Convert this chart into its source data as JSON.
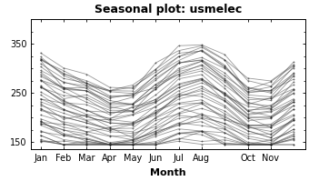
{
  "title": "Seasonal plot: usmelec",
  "xlabel": "Month",
  "months": [
    "Jan",
    "Feb",
    "Mar",
    "Apr",
    "May",
    "Jun",
    "Jul",
    "Aug",
    "Oct",
    "Nov"
  ],
  "month_positions": [
    1,
    2,
    3,
    4,
    5,
    6,
    7,
    8,
    10,
    11
  ],
  "all_months": [
    1,
    2,
    3,
    4,
    5,
    6,
    7,
    8,
    9,
    10,
    11,
    12
  ],
  "yticks": [
    150,
    250,
    350
  ],
  "ylim": [
    135,
    400
  ],
  "xlim": [
    0.6,
    12.5
  ],
  "line_color": "#444444",
  "line_alpha": 0.55,
  "line_width": 0.6,
  "bg_color": "#ffffff",
  "fig_bg_color": "#ffffff",
  "num_years": 45,
  "seed": 7,
  "base_pattern": [
    330,
    300,
    285,
    260,
    265,
    305,
    345,
    355,
    320,
    275,
    270,
    315
  ],
  "min_val": 145,
  "scale_start": 0.44,
  "scale_range": 0.56,
  "noise_std": 6,
  "title_fontsize": 9,
  "label_fontsize": 8,
  "tick_fontsize": 7
}
